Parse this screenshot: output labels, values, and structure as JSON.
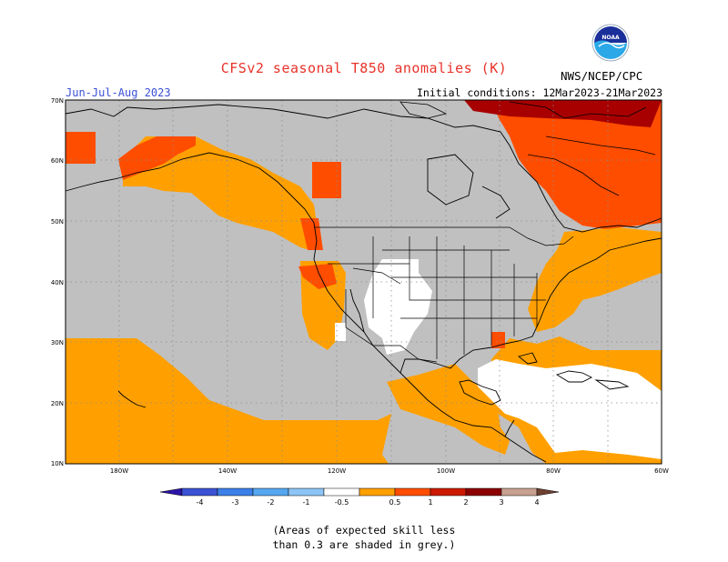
{
  "title": "CFSv2 seasonal T850 anomalies (K)",
  "season": "Jun-Jul-Aug 2023",
  "initial_conditions": "Initial conditions: 12Mar2023-21Mar2023",
  "agency": "NWS/NCEP/CPC",
  "logo_text": "NOAA",
  "lat_labels": [
    "70N",
    "60N",
    "50N",
    "40N",
    "30N",
    "20N",
    "10N"
  ],
  "lon_labels": [
    "180W",
    "140W",
    "120W",
    "100W",
    "80W",
    "60W"
  ],
  "colorbar": {
    "labels": [
      "-4",
      "-3",
      "-2",
      "-1",
      "-0.5",
      "0.5",
      "1",
      "2",
      "3",
      "4"
    ],
    "colors": [
      "#2b14a8",
      "#3a52d4",
      "#3b7fe8",
      "#55a7f0",
      "#8cc4f5",
      "#ffffff",
      "#ffa000",
      "#ff4d00",
      "#cc1a00",
      "#8c0000",
      "#c8a090",
      "#6e4030"
    ]
  },
  "note_line1": "(Areas of expected skill less",
  "note_line2": "than 0.3 are shaded in grey.)",
  "colors": {
    "grey": "#c0c0c0",
    "orange": "#ffa000",
    "red": "#ff4d00",
    "darkred": "#a80000",
    "white": "#ffffff"
  }
}
